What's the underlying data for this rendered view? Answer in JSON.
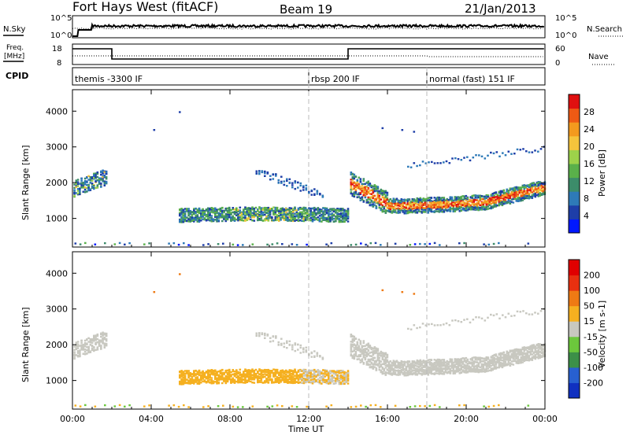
{
  "header": {
    "title": "Fort Hays West (fitACF)",
    "beam": "Beam 19",
    "date": "21/Jan/2013"
  },
  "side_labels": {
    "nsky": "N.Sky",
    "nsearch": "N.Search",
    "freq_line1": "Freq.",
    "freq_line2": "[MHz]",
    "nave": "Nave",
    "cpid": "CPID"
  },
  "noise_axis": {
    "top": "10^5",
    "bottom": "10^0"
  },
  "freq_axis": {
    "left_ticks": [
      "18",
      "8"
    ],
    "right_ticks": [
      "60",
      "0"
    ]
  },
  "cpid_segments": [
    {
      "label": "themis -3300 IF",
      "start_hr": 0
    },
    {
      "label": "rbsp 200 IF",
      "start_hr": 12
    },
    {
      "label": "normal (fast) 151 IF",
      "start_hr": 18
    }
  ],
  "chart_data": [
    {
      "type": "heatmap",
      "name": "power",
      "ylabel": "Slant Range [km]",
      "xlim": [
        0,
        24
      ],
      "ylim": [
        200,
        4600
      ],
      "yticks": [
        1000,
        2000,
        3000,
        4000
      ],
      "colorbar": {
        "label": "Power [dB]",
        "ticks": [
          "4",
          "8",
          "12",
          "16",
          "20",
          "24",
          "28"
        ],
        "colors": [
          "#0018ff",
          "#1e3ea8",
          "#2e7ab8",
          "#3c8c6a",
          "#5ab04a",
          "#9dd24a",
          "#f5c43c",
          "#f39a1e",
          "#ee5a14",
          "#e01010"
        ]
      }
    },
    {
      "type": "heatmap",
      "name": "velocity",
      "ylabel": "Slant Range [km]",
      "xlabel": "Time UT",
      "xlim": [
        0,
        24
      ],
      "ylim": [
        200,
        4600
      ],
      "yticks": [
        1000,
        2000,
        3000,
        4000
      ],
      "xticks": [
        "00:00",
        "04:00",
        "08:00",
        "12:00",
        "16:00",
        "20:00",
        "00:00"
      ],
      "colorbar": {
        "label": "Velocity [m s-1]",
        "ticks": [
          "200",
          "100",
          "50",
          "15",
          "-15",
          "-50",
          "-100",
          "-200"
        ],
        "colors": [
          "#1030c0",
          "#2860d0",
          "#3c9048",
          "#6cc83c",
          "#c8c8c0",
          "#f5b020",
          "#ee7a14",
          "#e83010",
          "#e00000"
        ]
      }
    }
  ]
}
